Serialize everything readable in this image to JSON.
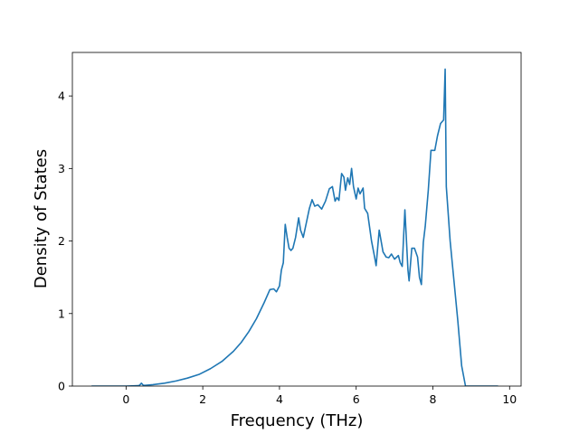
{
  "chart_data": {
    "type": "line",
    "xlabel": "Frequency (THz)",
    "ylabel": "Density of States",
    "xlim": [
      -1.4,
      10.3
    ],
    "ylim": [
      0,
      4.6
    ],
    "xticks": [
      0,
      2,
      4,
      6,
      8,
      10
    ],
    "yticks": [
      0,
      1,
      2,
      3,
      4
    ],
    "xtick_labels": [
      "0",
      "2",
      "4",
      "6",
      "8",
      "10"
    ],
    "ytick_labels": [
      "0",
      "1",
      "2",
      "3",
      "4"
    ],
    "grid": false,
    "legend": "none",
    "series": [
      {
        "color": "#1f77b4",
        "x": [
          -0.9,
          -0.5,
          0.0,
          0.3,
          0.35,
          0.4,
          0.45,
          0.5,
          0.7,
          1.0,
          1.3,
          1.6,
          1.9,
          2.2,
          2.5,
          2.8,
          3.0,
          3.2,
          3.4,
          3.6,
          3.75,
          3.85,
          3.92,
          4.0,
          4.05,
          4.1,
          4.15,
          4.2,
          4.25,
          4.3,
          4.35,
          4.42,
          4.5,
          4.55,
          4.62,
          4.7,
          4.78,
          4.85,
          4.92,
          5.0,
          5.1,
          5.2,
          5.3,
          5.38,
          5.45,
          5.5,
          5.55,
          5.62,
          5.68,
          5.72,
          5.78,
          5.83,
          5.88,
          5.93,
          6.0,
          6.05,
          6.1,
          6.18,
          6.22,
          6.3,
          6.4,
          6.48,
          6.52,
          6.6,
          6.7,
          6.78,
          6.85,
          6.92,
          7.0,
          7.1,
          7.15,
          7.2,
          7.27,
          7.35,
          7.38,
          7.45,
          7.52,
          7.6,
          7.65,
          7.7,
          7.75,
          7.8,
          7.88,
          7.95,
          8.05,
          8.12,
          8.2,
          8.28,
          8.32,
          8.35,
          8.45,
          8.55,
          8.65,
          8.75,
          8.85,
          8.95,
          9.2,
          9.7
        ],
        "y": [
          0.0,
          0.0,
          0.0,
          0.005,
          0.01,
          0.04,
          0.01,
          0.01,
          0.02,
          0.04,
          0.07,
          0.11,
          0.16,
          0.24,
          0.34,
          0.48,
          0.6,
          0.75,
          0.93,
          1.15,
          1.33,
          1.34,
          1.3,
          1.38,
          1.6,
          1.7,
          2.23,
          2.05,
          1.9,
          1.87,
          1.9,
          2.05,
          2.32,
          2.15,
          2.05,
          2.25,
          2.45,
          2.57,
          2.48,
          2.5,
          2.44,
          2.55,
          2.72,
          2.75,
          2.55,
          2.6,
          2.56,
          2.93,
          2.88,
          2.7,
          2.87,
          2.78,
          3.0,
          2.75,
          2.58,
          2.73,
          2.65,
          2.73,
          2.45,
          2.38,
          2.0,
          1.78,
          1.66,
          2.15,
          1.85,
          1.78,
          1.77,
          1.82,
          1.75,
          1.8,
          1.7,
          1.65,
          2.43,
          1.6,
          1.45,
          1.9,
          1.9,
          1.78,
          1.5,
          1.4,
          1.98,
          2.2,
          2.7,
          3.25,
          3.25,
          3.45,
          3.62,
          3.67,
          4.37,
          2.75,
          2.0,
          1.45,
          0.9,
          0.28,
          0.0,
          0.0,
          0.0,
          0.0
        ]
      }
    ]
  }
}
